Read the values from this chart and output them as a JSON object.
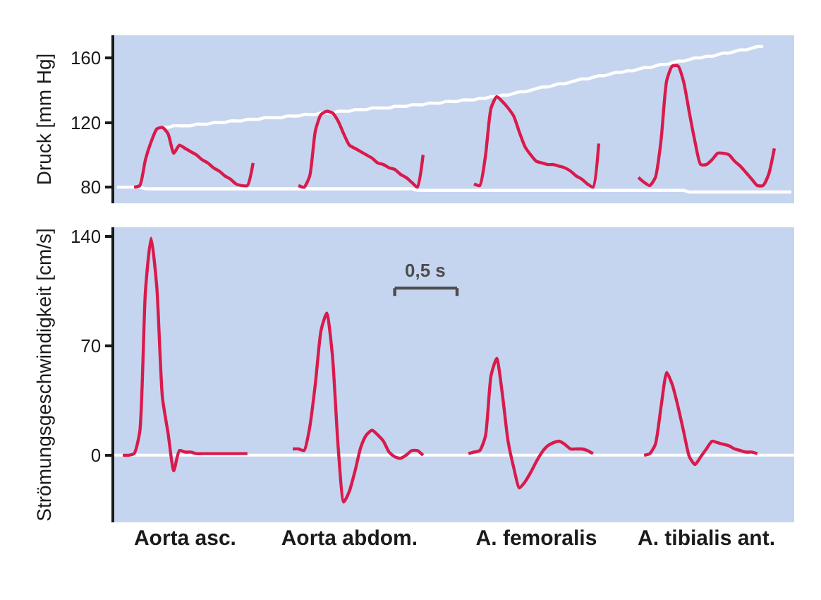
{
  "chart_data": [
    {
      "type": "line",
      "ylabel": "Druck [mm Hg]",
      "ylim": [
        70,
        174
      ],
      "yticks": [
        80,
        120,
        160
      ],
      "categories": [
        null,
        null,
        null,
        null,
        null,
        null,
        null,
        null,
        null,
        null,
        null,
        null,
        null,
        null,
        null,
        null,
        null,
        null,
        null,
        null,
        null,
        null,
        null,
        null,
        null,
        null,
        null,
        null,
        null,
        null,
        null,
        null,
        null,
        null,
        null,
        null,
        null,
        null,
        null,
        null,
        null,
        null,
        null,
        null,
        null,
        null,
        null,
        null,
        null,
        null,
        null,
        null,
        null,
        null,
        null,
        null,
        null,
        null,
        null,
        null,
        null,
        null,
        null,
        null,
        null,
        null,
        null,
        null,
        null,
        null,
        null,
        null,
        null,
        null,
        null,
        null,
        null,
        null,
        null,
        null,
        null,
        null,
        null,
        null,
        null,
        null,
        null,
        null,
        null,
        null,
        null,
        null,
        null,
        null,
        null,
        null,
        null,
        null,
        null,
        null,
        null,
        null,
        null,
        null,
        null,
        null,
        null,
        null,
        null,
        null,
        null,
        null,
        null,
        null,
        null,
        null,
        null,
        null,
        null,
        null
      ],
      "series": [
        {
          "color": "#ffffff",
          "values": [
            null,
            null,
            null,
            null,
            null,
            null,
            null,
            null,
            117,
            117,
            118,
            118,
            118,
            118,
            119,
            119,
            119,
            120,
            120,
            120,
            121,
            121,
            121,
            122,
            122,
            122,
            123,
            123,
            123,
            123,
            124,
            124,
            124,
            125,
            125,
            125,
            126,
            126,
            126,
            127,
            127,
            127,
            128,
            128,
            128,
            129,
            129,
            129,
            129,
            130,
            130,
            130,
            131,
            131,
            131,
            132,
            132,
            132,
            133,
            133,
            133,
            134,
            134,
            134,
            135,
            135,
            136,
            136,
            137,
            137,
            138,
            139,
            139,
            140,
            141,
            142,
            142,
            143,
            144,
            144,
            145,
            146,
            147,
            147,
            148,
            149,
            149,
            150,
            151,
            151,
            152,
            152,
            153,
            154,
            154,
            155,
            156,
            156,
            157,
            158,
            158,
            159,
            160,
            160,
            161,
            161,
            162,
            163,
            163,
            164,
            165,
            165,
            166,
            167,
            167,
            null,
            null,
            null,
            null,
            null
          ]
        },
        {
          "color": "#ffffff",
          "values": [
            80,
            80,
            80,
            80,
            80,
            79,
            79,
            79,
            79,
            79,
            79,
            79,
            79,
            79,
            79,
            79,
            79,
            79,
            79,
            79,
            79,
            79,
            79,
            79,
            79,
            79,
            79,
            79,
            79,
            79,
            79,
            79,
            79,
            79,
            79,
            79,
            79,
            79,
            79,
            79,
            79,
            79,
            79,
            79,
            79,
            79,
            79,
            79,
            79,
            79,
            79,
            79,
            79,
            78,
            78,
            78,
            78,
            78,
            78,
            78,
            78,
            78,
            78,
            78,
            78,
            78,
            78,
            78,
            78,
            78,
            78,
            78,
            78,
            78,
            78,
            78,
            78,
            78,
            78,
            78,
            78,
            78,
            78,
            78,
            78,
            78,
            78,
            78,
            78,
            78,
            78,
            78,
            78,
            78,
            78,
            78,
            78,
            78,
            78,
            78,
            78,
            77,
            77,
            77,
            77,
            77,
            77,
            77,
            77,
            77,
            77,
            77,
            77,
            77,
            77,
            77,
            77,
            77,
            77,
            77
          ]
        },
        {
          "color": "#d81b4c",
          "values": [
            null,
            null,
            null,
            80,
            81,
            97,
            108,
            116,
            117,
            113,
            101,
            106,
            104,
            102,
            100,
            97,
            95,
            92,
            90,
            87,
            85,
            82,
            81,
            81,
            95,
            null,
            null,
            null,
            null,
            null,
            null,
            null,
            81,
            80,
            87,
            115,
            125,
            127,
            126,
            121,
            113,
            106,
            104,
            102,
            100,
            98,
            95,
            94,
            92,
            91,
            88,
            86,
            83,
            80,
            100,
            null,
            null,
            null,
            null,
            null,
            null,
            null,
            null,
            82,
            81,
            99,
            129,
            136,
            133,
            129,
            124,
            114,
            105,
            100,
            96,
            95,
            94,
            94,
            93,
            92,
            90,
            87,
            85,
            82,
            80,
            107,
            null,
            null,
            null,
            null,
            null,
            null,
            86,
            83,
            81,
            86,
            109,
            146,
            155,
            155,
            145,
            126,
            108,
            94,
            94,
            97,
            101,
            101,
            100,
            96,
            93,
            89,
            85,
            81,
            81,
            88,
            104,
            null,
            null,
            null
          ]
        }
      ]
    },
    {
      "type": "line",
      "ylabel": "Strömungsgeschwindigkeit [cm/s]",
      "ylim": [
        -43,
        146
      ],
      "yticks": [
        0,
        70,
        140
      ],
      "categories": [
        null,
        null,
        null,
        null,
        null,
        null,
        null,
        null,
        null,
        null,
        null,
        null,
        "Aorta asc.",
        null,
        null,
        null,
        null,
        null,
        null,
        null,
        null,
        null,
        null,
        null,
        null,
        null,
        null,
        null,
        null,
        null,
        null,
        null,
        null,
        null,
        null,
        null,
        null,
        null,
        null,
        null,
        null,
        "Aorta abdom.",
        null,
        null,
        null,
        null,
        null,
        null,
        null,
        null,
        null,
        null,
        null,
        null,
        null,
        null,
        null,
        null,
        null,
        null,
        null,
        null,
        null,
        null,
        null,
        null,
        null,
        null,
        null,
        null,
        null,
        null,
        null,
        null,
        "A. femoralis",
        null,
        null,
        null,
        null,
        null,
        null,
        null,
        null,
        null,
        null,
        null,
        null,
        null,
        null,
        null,
        null,
        null,
        null,
        null,
        null,
        null,
        null,
        null,
        null,
        null,
        null,
        null,
        null,
        null,
        "A. tibialis ant.",
        null,
        null,
        null,
        null,
        null,
        null,
        null,
        null,
        null,
        null,
        null,
        null,
        null,
        null,
        null
      ],
      "ref_lines": [
        {
          "axis": "y",
          "value": 0,
          "color": "#ffffff"
        }
      ],
      "series": [
        {
          "name": "0,5 s",
          "color": "#4d4d4d",
          "values": [
            null,
            null,
            null,
            null,
            null,
            null,
            null,
            null,
            null,
            null,
            null,
            null,
            null,
            null,
            null,
            null,
            null,
            null,
            null,
            null,
            null,
            null,
            null,
            null,
            null,
            null,
            null,
            null,
            null,
            null,
            null,
            null,
            null,
            null,
            null,
            null,
            null,
            null,
            null,
            null,
            null,
            null,
            null,
            null,
            null,
            null,
            null,
            null,
            null,
            107,
            107,
            107,
            107,
            107,
            107,
            107,
            107,
            107,
            107,
            107,
            107,
            null,
            null,
            null,
            null,
            null,
            null,
            null,
            null,
            null,
            null,
            null,
            null,
            null,
            null,
            null,
            null,
            null,
            null,
            null,
            null,
            null,
            null,
            null,
            null,
            null,
            null,
            null,
            null,
            null,
            null,
            null,
            null,
            null,
            null,
            null,
            null,
            null,
            null,
            null,
            null,
            null,
            null,
            null,
            null,
            null,
            null,
            null,
            null,
            null,
            null,
            null,
            null,
            null,
            null,
            null,
            null,
            null,
            null,
            null
          ],
          "errors": [
            null,
            null,
            null,
            null,
            null,
            null,
            null,
            null,
            null,
            null,
            null,
            null,
            null,
            null,
            null,
            null,
            null,
            null,
            null,
            null,
            null,
            null,
            null,
            null,
            null,
            null,
            null,
            null,
            null,
            null,
            null,
            null,
            null,
            null,
            null,
            null,
            null,
            null,
            null,
            null,
            null,
            null,
            null,
            null,
            null,
            null,
            null,
            null,
            null,
            [
              102,
              107
            ],
            null,
            null,
            null,
            null,
            null,
            null,
            null,
            null,
            null,
            null,
            [
              102,
              107
            ],
            null,
            null,
            null,
            null,
            null,
            null,
            null,
            null,
            null,
            null,
            null,
            null,
            null,
            null,
            null,
            null,
            null,
            null,
            null,
            null,
            null,
            null,
            null,
            null,
            null,
            null,
            null,
            null,
            null,
            null,
            null,
            null,
            null,
            null,
            null,
            null,
            null,
            null,
            null,
            null,
            null,
            null,
            null,
            null,
            null,
            null,
            null,
            null,
            null,
            null,
            null,
            null,
            null,
            null,
            null,
            null,
            null,
            null,
            null
          ]
        },
        {
          "color": "#d81b4c",
          "values": [
            null,
            0,
            0,
            1,
            15,
            105,
            139,
            108,
            37,
            14,
            -10,
            3,
            2,
            2,
            1,
            1,
            1,
            1,
            1,
            1,
            1,
            1,
            1,
            1,
            null,
            null,
            null,
            null,
            null,
            null,
            null,
            4,
            4,
            3,
            18,
            46,
            80,
            91,
            64,
            6,
            -30,
            -23,
            -10,
            5,
            13,
            16,
            13,
            9,
            2,
            -1,
            -2,
            0,
            3,
            3,
            0,
            null,
            null,
            null,
            null,
            null,
            null,
            null,
            1,
            2,
            3,
            12,
            51,
            62,
            39,
            9,
            -8,
            -21,
            -17,
            -11,
            -4,
            2,
            6,
            8,
            9,
            7,
            4,
            4,
            4,
            3,
            1,
            null,
            null,
            null,
            null,
            null,
            null,
            null,
            null,
            0,
            1,
            7,
            31,
            53,
            45,
            31,
            15,
            -1,
            -6,
            -1,
            4,
            9,
            8,
            7,
            6,
            4,
            3,
            2,
            2,
            1,
            null,
            null,
            null,
            null,
            null,
            null
          ]
        }
      ]
    }
  ]
}
